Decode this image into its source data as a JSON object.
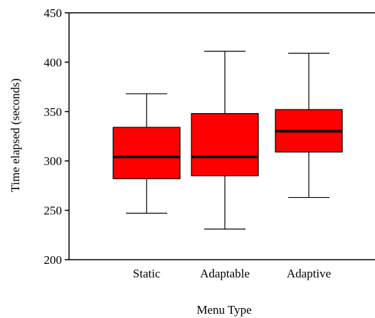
{
  "chart_data": {
    "type": "box",
    "title": "",
    "xlabel": "Menu Type",
    "ylabel": "Time elapsed (seconds)",
    "ylim": [
      200,
      450
    ],
    "yticks": [
      200,
      250,
      300,
      350,
      400,
      450
    ],
    "categories": [
      "Static",
      "Adaptable",
      "Adaptive"
    ],
    "boxes": [
      {
        "category": "Static",
        "min": 247,
        "q1": 282,
        "median": 304,
        "q3": 334,
        "max": 368
      },
      {
        "category": "Adaptable",
        "min": 231,
        "q1": 285,
        "median": 304,
        "q3": 348,
        "max": 411
      },
      {
        "category": "Adaptive",
        "min": 263,
        "q1": 309,
        "median": 330,
        "q3": 352,
        "max": 409
      }
    ],
    "box_color": "#ff0000",
    "median_color": "#000000",
    "grid": false
  }
}
